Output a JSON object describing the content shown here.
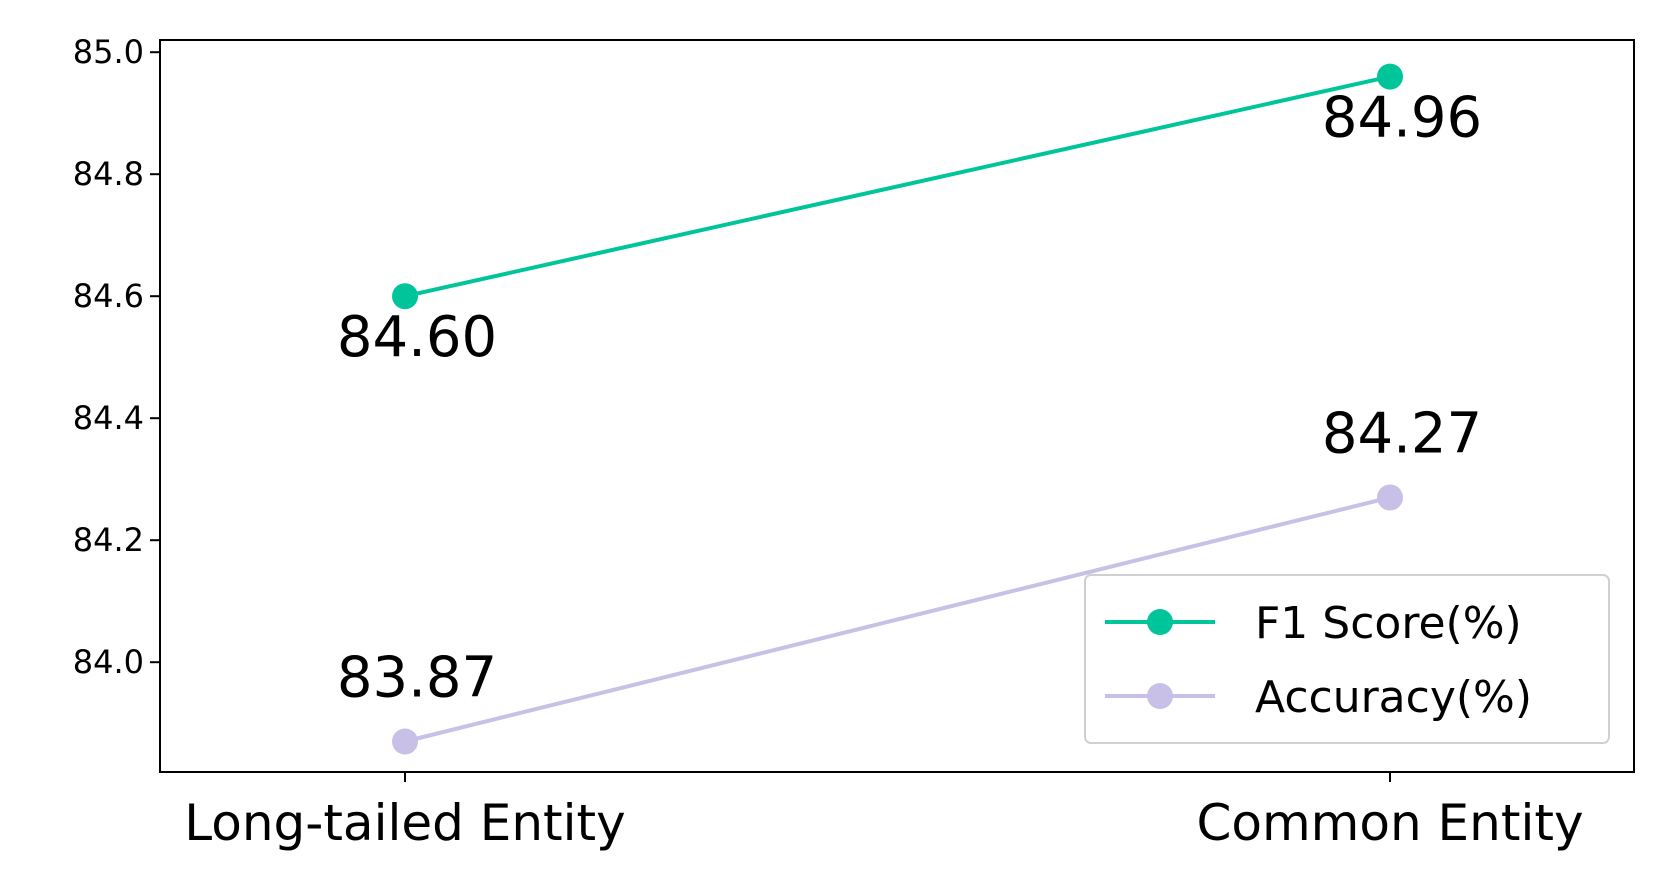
{
  "chart_data": {
    "type": "line",
    "categories": [
      "Long-tailed Entity",
      "Common Entity"
    ],
    "series": [
      {
        "name": "F1 Score(%)",
        "values": [
          84.6,
          84.96
        ],
        "color": "#00c49a",
        "labels": [
          "84.60",
          "84.96"
        ],
        "label_position": "below"
      },
      {
        "name": "Accuracy(%)",
        "values": [
          83.87,
          84.27
        ],
        "color": "#c8c0e6",
        "labels": [
          "83.87",
          "84.27"
        ],
        "label_position": "above"
      }
    ],
    "y_ticks": [
      "84.0",
      "84.2",
      "84.4",
      "84.6",
      "84.8",
      "85.0"
    ],
    "ylim": [
      83.82,
      85.02
    ],
    "grid": false,
    "legend_position": "lower-right",
    "title": "",
    "xlabel": "",
    "ylabel": ""
  }
}
